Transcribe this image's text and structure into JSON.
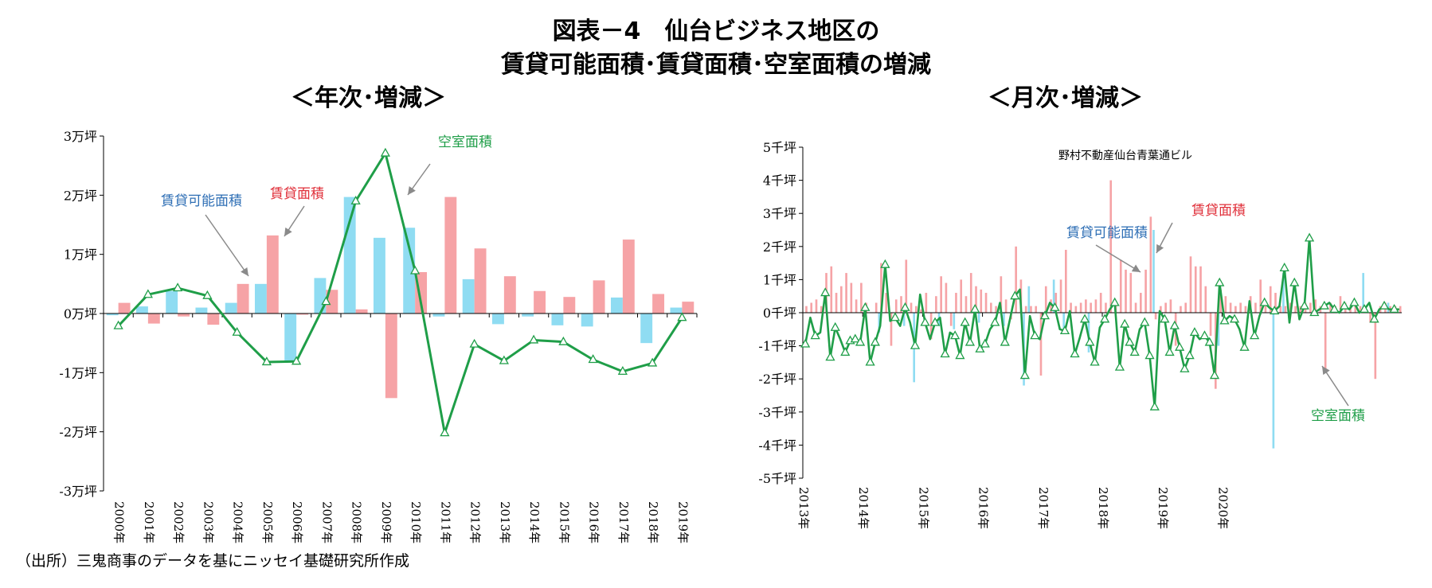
{
  "title_line1": "図表－4　仙台ビジネス地区の",
  "title_line2": "賃貸可能面積･賃貸面積･空室面積の増減",
  "source": "（出所）三鬼商事のデータを基にニッセイ基礎研究所作成",
  "colors": {
    "available": "#8fdcf2",
    "leased": "#f6a3a6",
    "vacant": "#1f9e48",
    "available_label": "#2f6fb5",
    "leased_label": "#e0303a",
    "vacant_label": "#1f9e48"
  },
  "chart_data": [
    {
      "type": "bar",
      "subtitle": "＜年次･増減＞",
      "unit": "万坪",
      "ylim": [
        -3,
        3
      ],
      "yticks": [
        3,
        2,
        1,
        0,
        -1,
        -2,
        -3
      ],
      "ytick_labels": [
        "3万坪",
        "2万坪",
        "1万坪",
        "0万坪",
        "-1万坪",
        "-2万坪",
        "-3万坪"
      ],
      "categories": [
        "2000年",
        "2001年",
        "2002年",
        "2003年",
        "2004年",
        "2005年",
        "2006年",
        "2007年",
        "2008年",
        "2009年",
        "2010年",
        "2011年",
        "2012年",
        "2013年",
        "2014年",
        "2015年",
        "2016年",
        "2017年",
        "2018年",
        "2019年"
      ],
      "series": [
        {
          "name": "賃貸可能面積",
          "type": "bar",
          "values": [
            -0.03,
            0.12,
            0.38,
            0.1,
            0.18,
            0.5,
            -0.8,
            0.6,
            1.97,
            1.28,
            1.45,
            -0.05,
            0.58,
            -0.18,
            -0.05,
            -0.2,
            -0.22,
            0.27,
            -0.5,
            0.1
          ]
        },
        {
          "name": "賃貸面積",
          "type": "bar",
          "values": [
            0.18,
            -0.17,
            -0.05,
            -0.19,
            0.5,
            1.32,
            -0.02,
            0.4,
            0.07,
            -1.43,
            0.7,
            1.97,
            1.1,
            0.63,
            0.38,
            0.28,
            0.56,
            1.25,
            0.33,
            0.2
          ]
        },
        {
          "name": "空室面積",
          "type": "line",
          "values": [
            -0.21,
            0.32,
            0.43,
            0.3,
            -0.32,
            -0.82,
            -0.81,
            0.2,
            1.9,
            2.71,
            0.72,
            -2.02,
            -0.52,
            -0.8,
            -0.45,
            -0.48,
            -0.78,
            -0.98,
            -0.84,
            -0.07
          ]
        }
      ],
      "annotations": [
        {
          "text": "賃貸可能面積",
          "series": "賃貸可能面積"
        },
        {
          "text": "賃貸面積",
          "series": "賃貸面積"
        },
        {
          "text": "空室面積",
          "series": "空室面積"
        }
      ]
    },
    {
      "type": "bar",
      "subtitle": "＜月次･増減＞",
      "unit": "千坪",
      "ylim": [
        -5,
        5
      ],
      "yticks": [
        5,
        4,
        3,
        2,
        1,
        0,
        -1,
        -2,
        -3,
        -4,
        -5
      ],
      "ytick_labels": [
        "5千坪",
        "4千坪",
        "3千坪",
        "2千坪",
        "1千坪",
        "0千坪",
        "-1千坪",
        "-2千坪",
        "-3千坪",
        "-4千坪",
        "-5千坪"
      ],
      "year_labels": [
        "2013年",
        "2014年",
        "2015年",
        "2016年",
        "2017年",
        "2018年",
        "2019年",
        "2020年"
      ],
      "months_start": "2013-01",
      "series": [
        {
          "name": "賃貸可能面積",
          "type": "bar",
          "values": [
            0.0,
            0.0,
            0.0,
            0.0,
            0.0,
            0.0,
            0.0,
            0.0,
            0.0,
            0.0,
            0.0,
            0.0,
            0.0,
            0.0,
            0.0,
            -0.6,
            0.0,
            0.0,
            0.0,
            0.0,
            -0.4,
            0.0,
            -2.1,
            0.0,
            0.0,
            0.0,
            0.0,
            -0.4,
            0.0,
            0.0,
            -0.5,
            0.0,
            0.0,
            0.0,
            0.0,
            -0.3,
            0.0,
            0.0,
            0.0,
            0.0,
            -0.4,
            0.0,
            0.0,
            0.0,
            -2.2,
            0.8,
            0.0,
            0.0,
            0.0,
            0.0,
            1.0,
            0.0,
            -0.5,
            0.0,
            0.0,
            0.0,
            0.0,
            -1.2,
            0.0,
            0.0,
            0.0,
            0.0,
            0.0,
            0.0,
            0.0,
            0.0,
            0.0,
            0.0,
            0.0,
            0.0,
            2.5,
            0.0,
            0.0,
            0.0,
            0.0,
            0.0,
            0.0,
            0.0,
            0.0,
            0.0,
            0.0,
            0.0,
            0.0,
            -1.0,
            0.0,
            0.0,
            0.0,
            0.0,
            0.0,
            0.0,
            0.0,
            0.0,
            0.0,
            0.0,
            -4.1,
            0.0,
            1.2,
            0.0,
            0.0,
            0.0,
            0.0,
            0.0,
            0.0,
            0.0,
            0.0,
            0.0,
            0.0,
            0.0,
            0.0,
            0.0,
            0.0,
            0.0,
            1.2,
            0.0,
            0.0,
            0.0,
            0.0,
            0.3
          ]
        },
        {
          "name": "賃貸面積",
          "type": "bar",
          "values": [
            0.2,
            0.3,
            0.4,
            0.2,
            1.2,
            1.4,
            0.6,
            0.8,
            1.2,
            0.9,
            0.4,
            0.9,
            0.3,
            0.0,
            0.3,
            1.5,
            0.6,
            -1.0,
            0.4,
            0.5,
            1.6,
            0.3,
            0.2,
            0.1,
            0.6,
            -0.8,
            0.5,
            1.1,
            0.9,
            -0.4,
            0.6,
            1.0,
            0.5,
            1.2,
            0.8,
            0.7,
            0.6,
            0.3,
            0.2,
            1.1,
            0.4,
            -0.2,
            2.0,
            1.0,
            0.2,
            0.2,
            0.2,
            -1.9,
            0.8,
            0.4,
            0.6,
            1.0,
            1.9,
            0.3,
            0.2,
            0.3,
            0.4,
            0.3,
            0.4,
            0.6,
            0.3,
            4.0,
            0.3,
            1.6,
            1.3,
            1.2,
            0.3,
            0.6,
            1.3,
            2.9,
            -0.2,
            0.2,
            0.3,
            0.4,
            -1.0,
            0.2,
            0.3,
            1.7,
            1.4,
            1.4,
            0.8,
            -0.7,
            -2.3,
            0.7,
            0.5,
            0.3,
            0.2,
            0.3,
            0.2,
            0.5,
            0.3,
            1.0,
            0.2,
            0.8,
            0.6,
            0.2,
            0.2,
            0.3,
            0.2,
            0.2,
            0.3,
            0.3,
            0.4,
            0.2,
            -1.8,
            0.3,
            0.2,
            0.5,
            0.3,
            0.2,
            0.3,
            0.2,
            0.2,
            -0.3,
            -2.0,
            0.2,
            0.3,
            0.2,
            0.2,
            0.2
          ]
        },
        {
          "name": "空室面積",
          "type": "line",
          "values": [
            -0.95,
            -0.15,
            -0.7,
            -0.6,
            0.6,
            -1.35,
            -0.45,
            -0.8,
            -1.2,
            -0.85,
            -0.8,
            -0.9,
            0.15,
            -1.5,
            -0.9,
            -0.4,
            1.45,
            -0.25,
            -0.15,
            -0.4,
            0.15,
            -0.3,
            -1.0,
            0.55,
            -0.3,
            -0.8,
            -0.3,
            -0.15,
            -1.25,
            -0.6,
            -0.7,
            -1.3,
            -0.3,
            -0.9,
            0.1,
            -1.1,
            -0.95,
            -0.5,
            -0.3,
            0.3,
            -0.9,
            -0.2,
            0.5,
            0.7,
            -1.9,
            -0.1,
            -0.7,
            -0.8,
            -0.1,
            0.3,
            0.15,
            -0.5,
            -0.55,
            0.05,
            -1.25,
            -0.75,
            -0.2,
            -0.9,
            -1.5,
            -0.45,
            -0.2,
            0.1,
            0.3,
            -1.65,
            -0.35,
            -0.9,
            -1.2,
            -0.5,
            -0.3,
            -1.3,
            -2.85,
            0.05,
            -0.2,
            -1.2,
            -0.4,
            -1.05,
            -1.7,
            -1.3,
            -0.6,
            -0.8,
            -0.7,
            -0.9,
            -1.9,
            0.9,
            -0.25,
            -0.1,
            -0.2,
            -0.5,
            -1.05,
            0.35,
            -0.7,
            -0.1,
            0.3,
            0.15,
            0.05,
            0.2,
            1.35,
            -0.3,
            0.9,
            -0.2,
            0.2,
            2.25,
            0.0,
            0.1,
            0.2,
            0.3,
            0.1,
            0.0,
            0.2,
            0.1,
            0.3,
            0.0,
            0.1,
            0.3,
            -0.2,
            0.1,
            0.2,
            0.1,
            0.1,
            0.1
          ]
        }
      ],
      "annotations": [
        {
          "text": "野村不動産仙台青葉通ビル"
        },
        {
          "text": "賃貸可能面積",
          "series": "賃貸可能面積"
        },
        {
          "text": "賃貸面積",
          "series": "賃貸面積"
        },
        {
          "text": "空室面積",
          "series": "空室面積"
        }
      ]
    }
  ]
}
